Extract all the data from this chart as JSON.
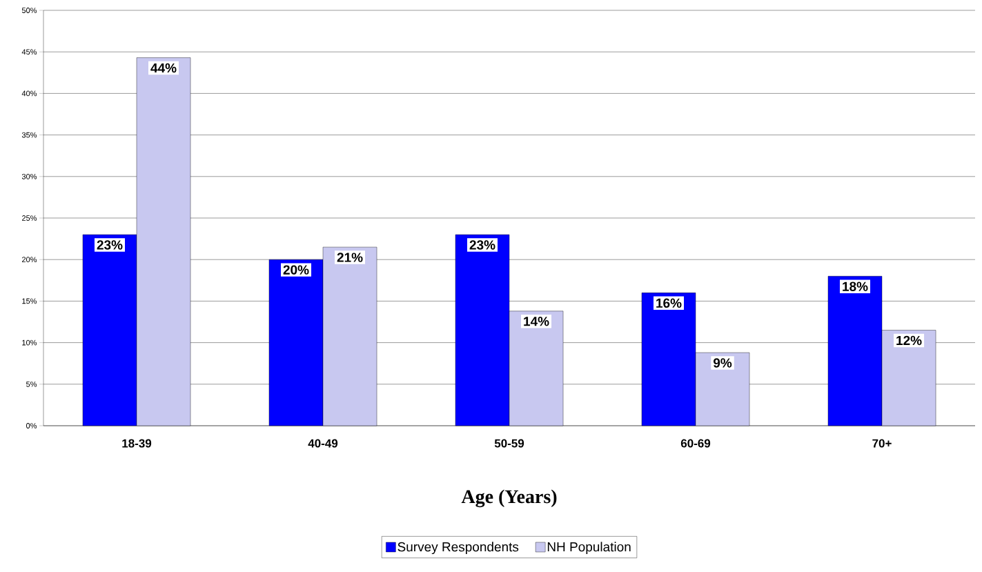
{
  "chart_data": {
    "type": "bar",
    "xlabel": "Age (Years)",
    "categories": [
      "18-39",
      "40-49",
      "50-59",
      "60-69",
      "70+"
    ],
    "series": [
      {
        "name": "Survey Respondents",
        "color": "#0000ff",
        "values": [
          23,
          20,
          23,
          16,
          18
        ],
        "value_labels": [
          "23%",
          "20%",
          "23%",
          "16%",
          "18%"
        ]
      },
      {
        "name": "NH Population",
        "color": "#c8c8f0",
        "values": [
          44.3,
          21.5,
          13.8,
          8.8,
          11.5
        ],
        "value_labels": [
          "44%",
          "21%",
          "14%",
          "9%",
          "12%"
        ]
      }
    ],
    "ylim": [
      0,
      50
    ],
    "yticks": [
      {
        "value": 0,
        "label": "0%"
      },
      {
        "value": 5,
        "label": "5%"
      },
      {
        "value": 10,
        "label": "10%"
      },
      {
        "value": 15,
        "label": "15%"
      },
      {
        "value": 20,
        "label": "20%"
      },
      {
        "value": 25,
        "label": "25%"
      },
      {
        "value": 30,
        "label": "30%"
      },
      {
        "value": 35,
        "label": "35%"
      },
      {
        "value": 40,
        "label": "40%"
      },
      {
        "value": 45,
        "label": "45%"
      },
      {
        "value": 50,
        "label": "50%"
      }
    ],
    "grid": "y",
    "legend": "bottom"
  }
}
